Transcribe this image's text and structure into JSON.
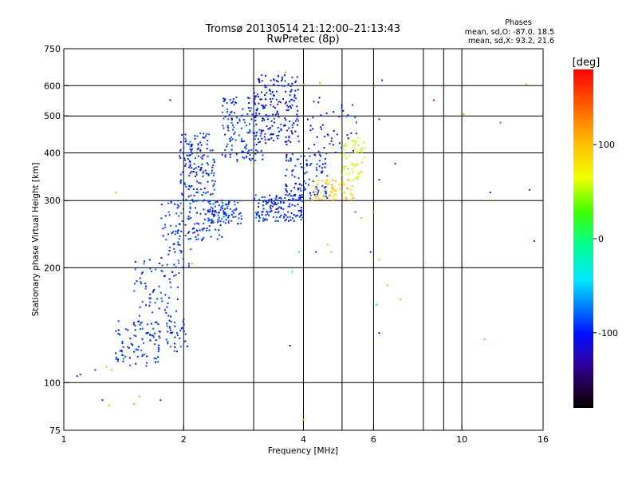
{
  "chart_data": {
    "type": "scatter",
    "title": "Tromsø 20130514 21:12:00–21:13:43",
    "subtitle": "RwPretec (8p)",
    "xlabel": "Frequency [MHz]",
    "ylabel": "Stationary phase Virtual Height [km]",
    "x_scale": "log",
    "y_scale": "log",
    "xlim": [
      1,
      16
    ],
    "ylim": [
      75,
      750
    ],
    "x_ticks": [
      1,
      2,
      4,
      6,
      10,
      16
    ],
    "x_ticks_labels": [
      "1",
      "2",
      "4",
      "6",
      "10",
      "16"
    ],
    "x_grid": [
      2,
      3,
      4,
      5,
      6,
      8,
      9,
      10
    ],
    "y_ticks": [
      75,
      100,
      200,
      300,
      400,
      500,
      600,
      750
    ],
    "y_ticks_labels": [
      "75",
      "100",
      "200",
      "300",
      "400",
      "500",
      "600",
      "750"
    ],
    "y_grid": [
      100,
      200,
      300,
      400,
      500,
      600
    ],
    "grid": true,
    "stats": {
      "heading": "Phases",
      "line_o": "mean, sd,O: -87.0, 18.5",
      "line_x": "mean, sd,X:  93.2, 21.6"
    },
    "colorbar": {
      "label": "[deg]",
      "range": [
        -180,
        180
      ],
      "ticks": [
        100,
        0,
        -100
      ],
      "ticks_labels": [
        "100",
        "0",
        "-100"
      ],
      "colormap": "rainbow"
    },
    "clusters": [
      {
        "f": [
          1.35,
          1.75
        ],
        "h": [
          110,
          145
        ],
        "phase": -100,
        "n": 90
      },
      {
        "f": [
          1.5,
          1.95
        ],
        "h": [
          140,
          210
        ],
        "phase": -100,
        "n": 70
      },
      {
        "f": [
          1.8,
          2.05
        ],
        "h": [
          120,
          150
        ],
        "phase": -100,
        "n": 35
      },
      {
        "f": [
          1.75,
          2.1
        ],
        "h": [
          200,
          300
        ],
        "phase": -100,
        "n": 70
      },
      {
        "f": [
          1.95,
          2.4
        ],
        "h": [
          300,
          450
        ],
        "phase": -100,
        "n": 150
      },
      {
        "f": [
          2.05,
          2.5
        ],
        "h": [
          235,
          300
        ],
        "phase": -100,
        "n": 70
      },
      {
        "f": [
          2.3,
          2.8
        ],
        "h": [
          260,
          300
        ],
        "phase": -95,
        "n": 90
      },
      {
        "f": [
          2.5,
          3.2
        ],
        "h": [
          380,
          560
        ],
        "phase": -100,
        "n": 140
      },
      {
        "f": [
          3.0,
          3.9
        ],
        "h": [
          420,
          640
        ],
        "phase": -110,
        "n": 190
      },
      {
        "f": [
          3.0,
          4.0
        ],
        "h": [
          265,
          310
        ],
        "phase": -100,
        "n": 140
      },
      {
        "f": [
          3.6,
          4.6
        ],
        "h": [
          300,
          400
        ],
        "phase": -105,
        "n": 110
      },
      {
        "f": [
          4.2,
          5.4
        ],
        "h": [
          300,
          340
        ],
        "phase": 105,
        "n": 70
      },
      {
        "f": [
          5.0,
          5.7
        ],
        "h": [
          340,
          440
        ],
        "phase": 75,
        "n": 55
      },
      {
        "f": [
          4.1,
          5.6
        ],
        "h": [
          400,
          560
        ],
        "phase": -105,
        "n": 45
      }
    ],
    "scatter_points": [
      {
        "f": 1.08,
        "h": 104,
        "phase": -100
      },
      {
        "f": 1.1,
        "h": 105,
        "phase": -100
      },
      {
        "f": 1.2,
        "h": 108,
        "phase": -100
      },
      {
        "f": 1.28,
        "h": 110,
        "phase": 120
      },
      {
        "f": 1.32,
        "h": 108,
        "phase": 120
      },
      {
        "f": 1.25,
        "h": 90,
        "phase": -100
      },
      {
        "f": 1.3,
        "h": 87,
        "phase": 120
      },
      {
        "f": 1.5,
        "h": 88,
        "phase": 120
      },
      {
        "f": 1.55,
        "h": 92,
        "phase": 120
      },
      {
        "f": 1.75,
        "h": 90,
        "phase": -100
      },
      {
        "f": 1.35,
        "h": 315,
        "phase": 120
      },
      {
        "f": 1.85,
        "h": 550,
        "phase": -100
      },
      {
        "f": 2.1,
        "h": 205,
        "phase": 120
      },
      {
        "f": 3.0,
        "h": 370,
        "phase": 120
      },
      {
        "f": 3.6,
        "h": 650,
        "phase": 120
      },
      {
        "f": 4.3,
        "h": 220,
        "phase": -100
      },
      {
        "f": 4.7,
        "h": 220,
        "phase": 120
      },
      {
        "f": 5.4,
        "h": 280,
        "phase": 160
      },
      {
        "f": 5.6,
        "h": 270,
        "phase": 120
      },
      {
        "f": 6.0,
        "h": 280,
        "phase": 120
      },
      {
        "f": 5.9,
        "h": 220,
        "phase": -100
      },
      {
        "f": 6.2,
        "h": 340,
        "phase": -100
      },
      {
        "f": 6.2,
        "h": 210,
        "phase": 120
      },
      {
        "f": 6.1,
        "h": 160,
        "phase": -10
      },
      {
        "f": 6.2,
        "h": 135,
        "phase": -100
      },
      {
        "f": 6.5,
        "h": 180,
        "phase": 120
      },
      {
        "f": 7.0,
        "h": 165,
        "phase": 120
      },
      {
        "f": 6.2,
        "h": 490,
        "phase": -100
      },
      {
        "f": 6.3,
        "h": 620,
        "phase": -100
      },
      {
        "f": 6.8,
        "h": 375,
        "phase": -100
      },
      {
        "f": 8.5,
        "h": 550,
        "phase": 180
      },
      {
        "f": 10.1,
        "h": 505,
        "phase": 120
      },
      {
        "f": 11.4,
        "h": 130,
        "phase": -10
      },
      {
        "f": 11.8,
        "h": 315,
        "phase": -100
      },
      {
        "f": 12.5,
        "h": 480,
        "phase": 160
      },
      {
        "f": 14.8,
        "h": 320,
        "phase": -100
      },
      {
        "f": 15.2,
        "h": 235,
        "phase": -100
      },
      {
        "f": 14.5,
        "h": 605,
        "phase": 120
      },
      {
        "f": 4.0,
        "h": 80,
        "phase": 120
      },
      {
        "f": 3.75,
        "h": 195,
        "phase": -10
      },
      {
        "f": 3.7,
        "h": 125,
        "phase": -150
      },
      {
        "f": 4.0,
        "h": 605,
        "phase": 120
      },
      {
        "f": 4.4,
        "h": 610,
        "phase": 120
      },
      {
        "f": 3.9,
        "h": 220,
        "phase": -10
      },
      {
        "f": 4.6,
        "h": 230,
        "phase": 120
      }
    ]
  }
}
